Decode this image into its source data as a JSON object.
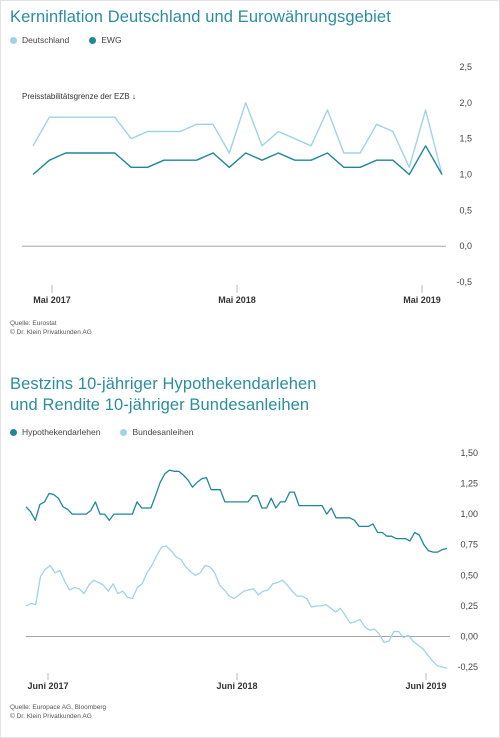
{
  "chart_data": [
    {
      "type": "line",
      "title": "Kerninflation Deutschland und Eurowährungsgebiet",
      "x_labels": [
        "Mai 2017",
        "Mai 2018",
        "Mai 2019"
      ],
      "ylim": [
        -0.5,
        2.5
      ],
      "yticks": [
        2.5,
        2.0,
        1.5,
        1.0,
        0.5,
        0.0,
        -0.5
      ],
      "ytick_labels": [
        "2,5",
        "2,0",
        "1,5",
        "1,0",
        "0,5",
        "0,0",
        "-0,5"
      ],
      "annotation": "Preisstabilitätsgrenze der EZB ↓",
      "x": [
        "2017-03",
        "2017-04",
        "2017-05",
        "2017-06",
        "2017-07",
        "2017-08",
        "2017-09",
        "2017-10",
        "2017-11",
        "2017-12",
        "2018-01",
        "2018-02",
        "2018-03",
        "2018-04",
        "2018-05",
        "2018-06",
        "2018-07",
        "2018-08",
        "2018-09",
        "2018-10",
        "2018-11",
        "2018-12",
        "2019-01",
        "2019-02",
        "2019-03",
        "2019-04",
        "2019-05",
        "2019-06"
      ],
      "series": [
        {
          "name": "Deutschland",
          "color": "#9fd3ea",
          "values": [
            1.4,
            1.8,
            1.8,
            1.8,
            1.8,
            1.8,
            1.5,
            1.6,
            1.6,
            1.6,
            1.7,
            1.7,
            1.3,
            2.0,
            1.4,
            1.6,
            1.5,
            1.4,
            1.9,
            1.3,
            1.3,
            1.7,
            1.6,
            1.1,
            1.9,
            1.0,
            null,
            null
          ]
        },
        {
          "name": "EWG",
          "color": "#1f8799",
          "values": [
            1.0,
            1.2,
            1.3,
            1.3,
            1.3,
            1.3,
            1.1,
            1.1,
            1.2,
            1.2,
            1.2,
            1.3,
            1.1,
            1.3,
            1.2,
            1.3,
            1.2,
            1.2,
            1.3,
            1.1,
            1.1,
            1.2,
            1.2,
            1.0,
            1.4,
            1.0,
            null,
            null
          ]
        }
      ],
      "source_lines": [
        "Quelle: Eurostat",
        "© Dr. Klein Privatkunden AG"
      ]
    },
    {
      "type": "line",
      "title_lines": [
        "Bestzins 10-jähriger Hypothekendarlehen",
        "und Rendite 10-jähriger Bundesanleihen"
      ],
      "x_labels": [
        "Juni 2017",
        "Juni 2018",
        "Juni 2019"
      ],
      "ylim": [
        -0.3,
        1.55
      ],
      "yticks": [
        1.5,
        1.25,
        1.0,
        0.75,
        0.5,
        0.25,
        0.0,
        -0.25
      ],
      "ytick_labels": [
        "1,50",
        "1,25",
        "1,00",
        "0,75",
        "0,50",
        "0,25",
        "0,00",
        "-0,25"
      ],
      "series": [
        {
          "name": "Hypothekendarlehen",
          "color": "#1f8799",
          "values": [
            1.06,
            1.02,
            0.95,
            1.08,
            1.1,
            1.17,
            1.16,
            1.13,
            1.06,
            1.04,
            1.0,
            1.0,
            1.0,
            1.0,
            1.03,
            1.1,
            1.0,
            1.0,
            0.95,
            1.0,
            1.0,
            1.0,
            1.0,
            1.0,
            1.1,
            1.05,
            1.05,
            1.05,
            1.15,
            1.26,
            1.33,
            1.36,
            1.35,
            1.35,
            1.32,
            1.28,
            1.22,
            1.26,
            1.29,
            1.3,
            1.2,
            1.2,
            1.2,
            1.1,
            1.1,
            1.1,
            1.1,
            1.1,
            1.1,
            1.15,
            1.15,
            1.05,
            1.05,
            1.13,
            1.05,
            1.1,
            1.1,
            1.18,
            1.18,
            1.07,
            1.07,
            1.07,
            1.07,
            1.07,
            1.07,
            1.0,
            1.05,
            0.97,
            0.97,
            0.97,
            0.97,
            0.95,
            0.9,
            0.9,
            0.9,
            0.92,
            0.85,
            0.85,
            0.82,
            0.82,
            0.8,
            0.8,
            0.8,
            0.78,
            0.85,
            0.83,
            0.75,
            0.7,
            0.69,
            0.69,
            0.71,
            0.72
          ]
        },
        {
          "name": "Bundesanleihen",
          "color": "#9fd3ea",
          "values": [
            0.25,
            0.27,
            0.26,
            0.49,
            0.55,
            0.58,
            0.52,
            0.54,
            0.45,
            0.38,
            0.4,
            0.39,
            0.35,
            0.42,
            0.46,
            0.44,
            0.42,
            0.37,
            0.43,
            0.35,
            0.37,
            0.32,
            0.31,
            0.4,
            0.43,
            0.52,
            0.58,
            0.66,
            0.73,
            0.74,
            0.7,
            0.65,
            0.63,
            0.57,
            0.53,
            0.5,
            0.52,
            0.58,
            0.57,
            0.52,
            0.42,
            0.38,
            0.33,
            0.31,
            0.34,
            0.37,
            0.38,
            0.39,
            0.34,
            0.37,
            0.38,
            0.43,
            0.44,
            0.46,
            0.42,
            0.37,
            0.33,
            0.33,
            0.31,
            0.24,
            0.25,
            0.25,
            0.26,
            0.23,
            0.2,
            0.23,
            0.17,
            0.11,
            0.12,
            0.14,
            0.08,
            0.05,
            0.06,
            0.02,
            -0.05,
            -0.04,
            0.04,
            0.04,
            -0.01,
            0.01,
            -0.04,
            -0.07,
            -0.1,
            -0.15,
            -0.2,
            -0.24,
            -0.25,
            -0.26
          ]
        }
      ],
      "source_lines": [
        "Quelle: Europace AG, Bloomberg",
        "© Dr. Klein Privatkunden AG"
      ]
    }
  ]
}
